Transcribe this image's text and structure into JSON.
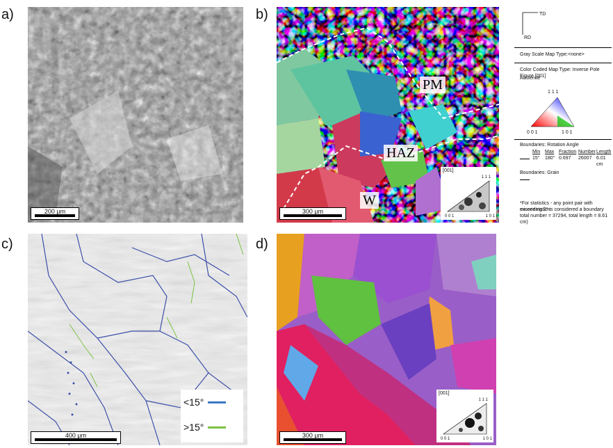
{
  "panel_labels": {
    "a": "a)",
    "b": "b)",
    "c": "c)",
    "d": "d)"
  },
  "scalebars": {
    "a": "200 µm",
    "b": "300 µm",
    "c": "400 µm",
    "d": "300 µm"
  },
  "zones": {
    "pm": "PM",
    "haz": "HAZ",
    "w": "W"
  },
  "inset": {
    "header": "[001]",
    "top": "1 1 1",
    "left": "0 0 1",
    "right": "1 0 1"
  },
  "legend_c": {
    "low": "<15°",
    "high": ">15°",
    "low_color": "#3b78c2",
    "high_color": "#7cc242"
  },
  "info": {
    "td": "TD",
    "rd": "RD",
    "gray": "Gray Scale Map Type:<none>",
    "color": "Color Coded Map Type: Inverse Pole Figure [001]",
    "phase": "Austenite",
    "tri_top": "1 1 1",
    "tri_left": "0 0 1",
    "tri_right": "1 0 1",
    "boundaries_rot": "Boundaries: Rotation Angle",
    "col_min": "Min",
    "col_max": "Max",
    "col_fraction": "Fraction",
    "col_number": "Number",
    "col_length": "Length",
    "val_min": "15°",
    "val_max": "180°",
    "val_fraction": "0.697",
    "val_number": "26007",
    "val_length": "6.01 cm",
    "boundaries_grain": "Boundaries: Grain",
    "note1": "*For statistics - any point pair with misorientation",
    "note2": "exceeding 2° is considered a boundary",
    "note3": "total number = 37294, total length = 8.61 cm)"
  }
}
